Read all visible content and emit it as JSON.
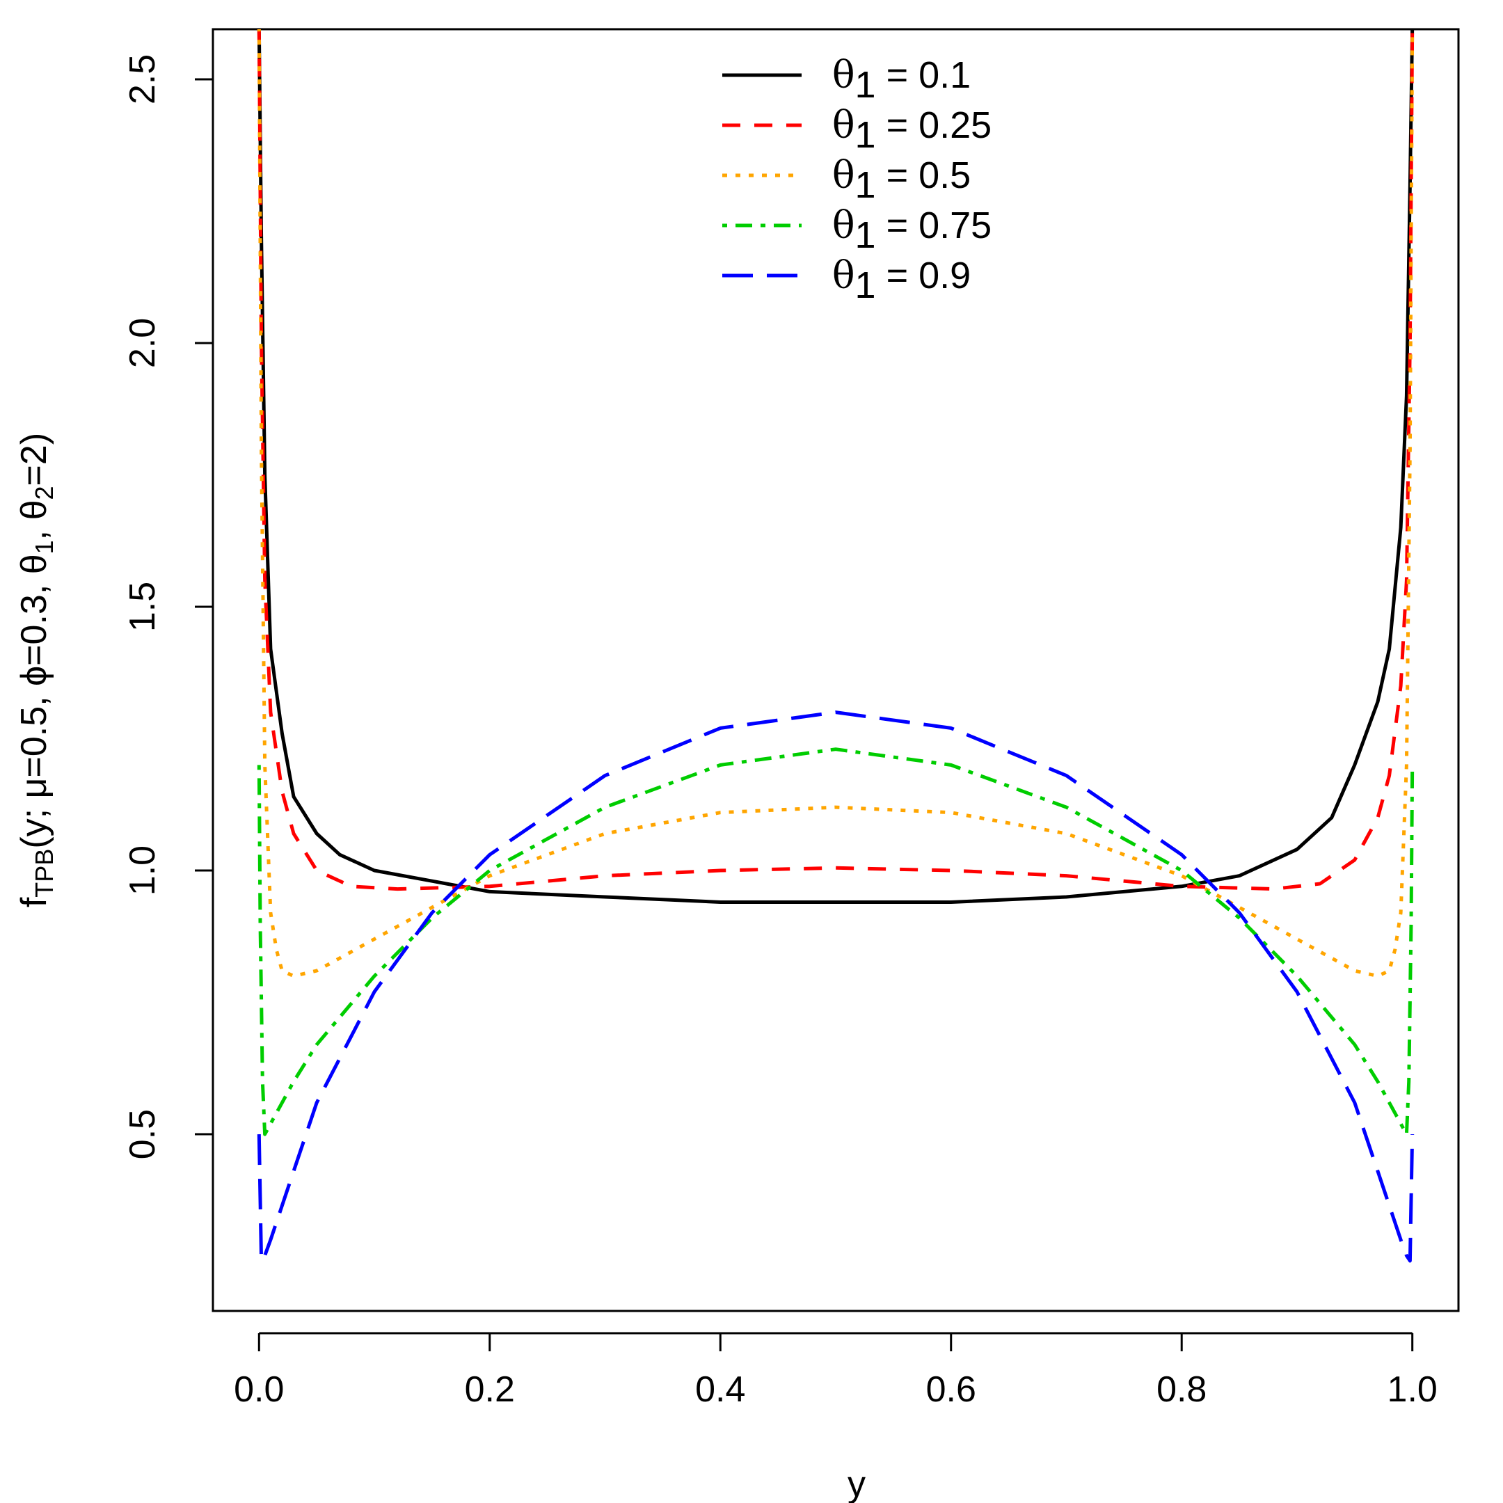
{
  "chart_data": {
    "type": "line",
    "xlabel": "y",
    "ylabel": {
      "f": "f",
      "f_sub": "TPB",
      "open": "(y; μ=0.5, ϕ=0.3, θ",
      "theta1_sub": "1",
      "mid": ", θ",
      "theta2_sub": "2",
      "close": "=2)"
    },
    "xlim": [
      -0.04,
      1.04
    ],
    "ylim": [
      0.165,
      2.595
    ],
    "xticks": [
      "0.0",
      "0.2",
      "0.4",
      "0.6",
      "0.8",
      "1.0"
    ],
    "yticks": [
      "0.5",
      "1.0",
      "1.5",
      "2.0",
      "2.5"
    ],
    "legend_position": "top-center",
    "series": [
      {
        "name": "θ1 = 0.1",
        "symbol": "θ",
        "sub": "1",
        "value_text": " = 0.1",
        "color": "#000000",
        "dash": "solid",
        "x": [
          0.0,
          0.002,
          0.005,
          0.01,
          0.02,
          0.03,
          0.05,
          0.07,
          0.1,
          0.15,
          0.2,
          0.3,
          0.4,
          0.5,
          0.6,
          0.7,
          0.8,
          0.85,
          0.9,
          0.93,
          0.95,
          0.97,
          0.98,
          0.99,
          0.995,
          0.998,
          1.0
        ],
        "y": [
          2.6,
          2.2,
          1.75,
          1.42,
          1.26,
          1.14,
          1.07,
          1.03,
          1.0,
          0.98,
          0.96,
          0.95,
          0.94,
          0.94,
          0.94,
          0.95,
          0.97,
          0.99,
          1.04,
          1.1,
          1.2,
          1.32,
          1.42,
          1.65,
          1.9,
          2.3,
          2.6
        ]
      },
      {
        "name": "θ1 = 0.25",
        "symbol": "θ",
        "sub": "1",
        "value_text": " = 0.25",
        "color": "#ff0000",
        "dash": "dashed",
        "x": [
          0.0,
          0.002,
          0.005,
          0.01,
          0.02,
          0.03,
          0.05,
          0.08,
          0.12,
          0.2,
          0.3,
          0.4,
          0.5,
          0.6,
          0.7,
          0.8,
          0.88,
          0.92,
          0.95,
          0.97,
          0.98,
          0.99,
          0.995,
          0.998,
          1.0
        ],
        "y": [
          2.6,
          2.0,
          1.55,
          1.3,
          1.15,
          1.07,
          1.0,
          0.97,
          0.965,
          0.97,
          0.99,
          1.0,
          1.005,
          1.0,
          0.99,
          0.97,
          0.965,
          0.975,
          1.02,
          1.1,
          1.18,
          1.35,
          1.55,
          2.0,
          2.6
        ]
      },
      {
        "name": "θ1 = 0.5",
        "symbol": "θ",
        "sub": "1",
        "value_text": " = 0.5",
        "color": "#ffa500",
        "dash": "dotted",
        "x": [
          0.0,
          0.002,
          0.005,
          0.01,
          0.015,
          0.02,
          0.03,
          0.05,
          0.1,
          0.15,
          0.2,
          0.3,
          0.4,
          0.5,
          0.6,
          0.7,
          0.8,
          0.85,
          0.9,
          0.95,
          0.97,
          0.98,
          0.985,
          0.99,
          0.995,
          0.998,
          1.0
        ],
        "y": [
          2.6,
          1.8,
          1.2,
          0.92,
          0.85,
          0.81,
          0.8,
          0.81,
          0.87,
          0.93,
          0.99,
          1.07,
          1.11,
          1.12,
          1.11,
          1.07,
          0.99,
          0.93,
          0.87,
          0.81,
          0.8,
          0.81,
          0.85,
          0.92,
          1.2,
          1.8,
          2.6
        ]
      },
      {
        "name": "θ1 = 0.75",
        "symbol": "θ",
        "sub": "1",
        "value_text": " = 0.75",
        "color": "#00cd00",
        "dash": "dotdash",
        "x": [
          0.0,
          0.001,
          0.003,
          0.005,
          0.01,
          0.03,
          0.05,
          0.1,
          0.15,
          0.2,
          0.3,
          0.4,
          0.5,
          0.6,
          0.7,
          0.8,
          0.85,
          0.9,
          0.95,
          0.97,
          0.99,
          0.995,
          0.997,
          0.999,
          1.0
        ],
        "y": [
          1.2,
          0.9,
          0.6,
          0.5,
          0.52,
          0.6,
          0.67,
          0.8,
          0.91,
          1.0,
          1.12,
          1.2,
          1.23,
          1.2,
          1.12,
          1.0,
          0.91,
          0.8,
          0.67,
          0.6,
          0.52,
          0.5,
          0.6,
          0.9,
          1.2
        ]
      },
      {
        "name": "θ1 = 0.9",
        "symbol": "θ",
        "sub": "1",
        "value_text": " = 0.9",
        "color": "#0000ff",
        "dash": "longdash",
        "x": [
          0.0,
          0.002,
          0.005,
          0.01,
          0.03,
          0.05,
          0.1,
          0.15,
          0.2,
          0.3,
          0.4,
          0.5,
          0.6,
          0.7,
          0.8,
          0.85,
          0.9,
          0.95,
          0.97,
          0.99,
          0.995,
          0.998,
          1.0
        ],
        "y": [
          0.5,
          0.26,
          0.27,
          0.3,
          0.43,
          0.56,
          0.77,
          0.92,
          1.03,
          1.18,
          1.27,
          1.3,
          1.27,
          1.18,
          1.03,
          0.92,
          0.77,
          0.56,
          0.43,
          0.3,
          0.27,
          0.26,
          0.5
        ]
      }
    ]
  }
}
